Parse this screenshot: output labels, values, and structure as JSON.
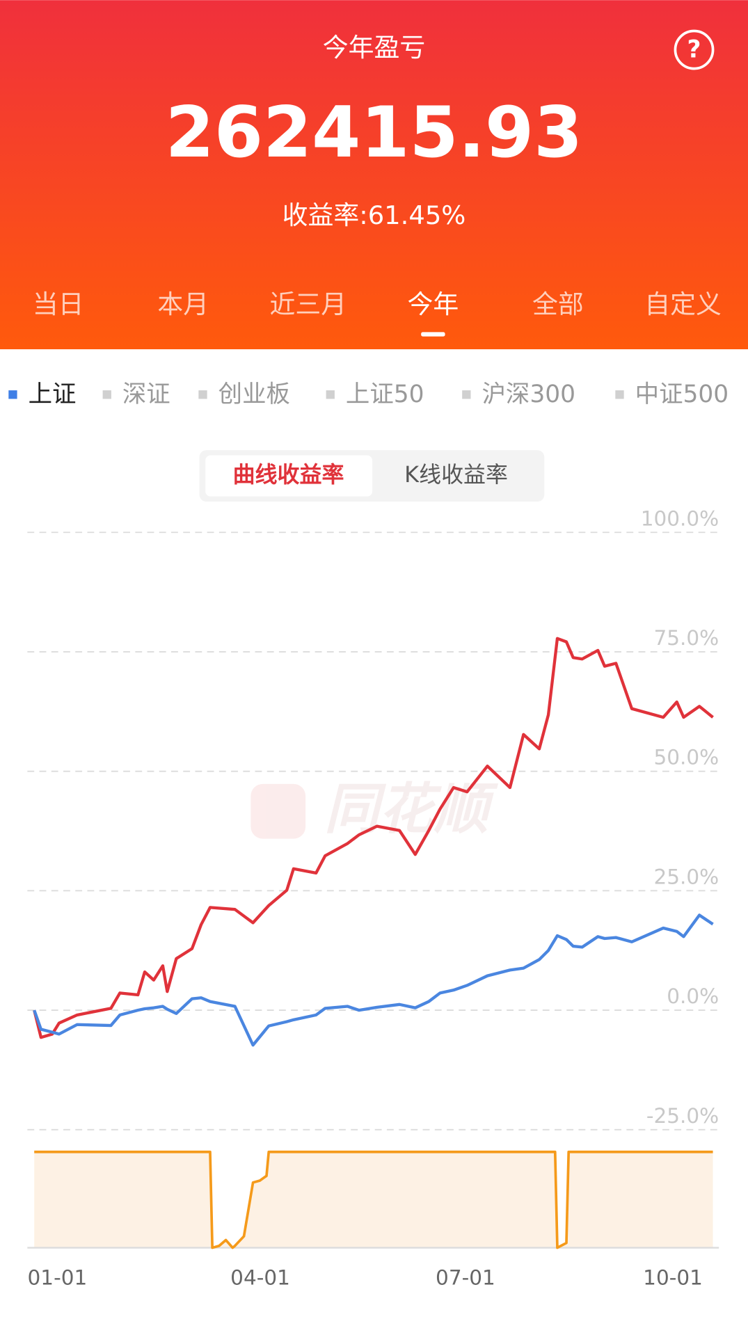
{
  "header": {
    "title": "今年盈亏",
    "amount": "262415.93",
    "yield": "收益率:61.45%"
  },
  "period_tabs": [
    "当日",
    "本月",
    "近三月",
    "今年",
    "全部",
    "自定义"
  ],
  "active_period": 3,
  "index_tabs": [
    "上证",
    "深证",
    "创业板",
    "上证50",
    "沪深300",
    "中证500"
  ],
  "active_index": 0,
  "chart_toggle": [
    "曲线收益率",
    "K线收益率"
  ],
  "active_toggle": 0,
  "watermark": "同花顺",
  "chart_data": [
    {
      "type": "line",
      "grid": true,
      "x": [
        0,
        3,
        8,
        11,
        19,
        34,
        38,
        46,
        49,
        53,
        57,
        59,
        63,
        70,
        74,
        78,
        89,
        97,
        104,
        112,
        115,
        125,
        129,
        139,
        144,
        152,
        162,
        169,
        175,
        180,
        186,
        192,
        201,
        211,
        217,
        224,
        228,
        232,
        236,
        239,
        243,
        250,
        253,
        258,
        265,
        279,
        285,
        288,
        295,
        301
      ],
      "xlim": [
        0,
        301
      ],
      "xticks": [
        {
          "value": 0,
          "label": "01-01"
        },
        {
          "value": 90,
          "label": "04-01"
        },
        {
          "value": 181,
          "label": "07-01"
        },
        {
          "value": 273,
          "label": "10-01"
        }
      ],
      "ylim": [
        -25,
        100
      ],
      "yticks": [
        {
          "value": -25,
          "label": "-25.0%"
        },
        {
          "value": 0,
          "label": "0.0%"
        },
        {
          "value": 25,
          "label": "25.0%"
        },
        {
          "value": 50,
          "label": "50.0%"
        },
        {
          "value": 75,
          "label": "75.0%"
        },
        {
          "value": 100,
          "label": "100.0%"
        }
      ],
      "series": [
        {
          "color": "#e0323a",
          "values": [
            0,
            -5.7,
            -5,
            -2.7,
            -1,
            0.4,
            3.6,
            3.2,
            8,
            6.3,
            9.3,
            3.9,
            10.8,
            12.9,
            17.9,
            21.5,
            21.1,
            18.3,
            21.9,
            25.1,
            29.6,
            28.7,
            32.3,
            34.9,
            36.7,
            38.5,
            37.6,
            32.6,
            37.6,
            42.1,
            46.6,
            45.7,
            51.1,
            46.6,
            57.7,
            54.7,
            61.8,
            77.8,
            77.1,
            73.8,
            73.5,
            75.3,
            72,
            72.6,
            63.1,
            61.3,
            64.5,
            61.3,
            63.6,
            61.3
          ]
        },
        {
          "color": "#4a86e0",
          "values": [
            0,
            -4,
            -4.6,
            -5,
            -3,
            -3.2,
            -1,
            0,
            0.3,
            0.5,
            0.8,
            0.2,
            -0.7,
            2.4,
            2.6,
            1.8,
            0.8,
            -7.3,
            -3.3,
            -2.4,
            -2,
            -1,
            0.4,
            0.8,
            0,
            0.6,
            1.2,
            0.5,
            1.8,
            3.6,
            4.2,
            5.2,
            7.2,
            8.4,
            8.8,
            10.6,
            12.5,
            15.6,
            14.8,
            13.4,
            13.2,
            15.4,
            15,
            15.2,
            14.3,
            17.2,
            16.5,
            15.4,
            19.9,
            18
          ]
        }
      ]
    },
    {
      "type": "area",
      "color": "#f59a1a",
      "fill": "#fdf1e4",
      "x": [
        0,
        78,
        79,
        82,
        85,
        88,
        89,
        93,
        97,
        100,
        103,
        104,
        150,
        250,
        231,
        232,
        236,
        237,
        301
      ],
      "xlim": [
        0,
        301
      ],
      "ylim": [
        0,
        100
      ],
      "values": [
        100,
        100,
        0,
        2,
        8,
        0,
        2,
        12,
        68,
        70,
        75,
        100,
        100,
        100,
        100,
        0,
        5,
        100,
        100
      ]
    }
  ]
}
